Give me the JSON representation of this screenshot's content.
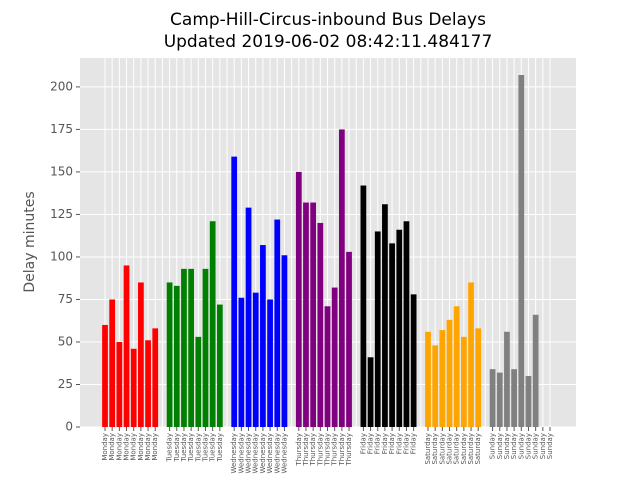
{
  "chart_data": {
    "type": "bar",
    "title": "Camp-Hill-Circus-inbound Bus Delays",
    "subtitle": "Updated 2019-06-02 08:42:11.484177",
    "ylabel": "Delay minutes",
    "categories": [
      "Monday",
      "Monday",
      "Monday",
      "Monday",
      "Monday",
      "Monday",
      "Monday",
      "Monday",
      null,
      "Tuesday",
      "Tuesday",
      "Tuesday",
      "Tuesday",
      "Tuesday",
      "Tuesday",
      "Tuesday",
      "Tuesday",
      null,
      "Wednesday",
      "Wednesday",
      "Wednesday",
      "Wednesday",
      "Wednesday",
      "Wednesday",
      "Wednesday",
      "Wednesday",
      null,
      "Thursday",
      "Thursday",
      "Thursday",
      "Thursday",
      "Thursday",
      "Thursday",
      "Thursday",
      "Thursday",
      null,
      "Friday",
      "Friday",
      "Friday",
      "Friday",
      "Friday",
      "Friday",
      "Friday",
      "Friday",
      null,
      "Saturday",
      "Saturday",
      "Saturday",
      "Saturday",
      "Saturday",
      "Saturday",
      "Saturday",
      "Saturday",
      null,
      "Sunday",
      "Sunday",
      "Sunday",
      "Sunday",
      "Sunday",
      "Sunday",
      "Sunday",
      "Sunday",
      "Sunday"
    ],
    "values": [
      60,
      75,
      50,
      95,
      46,
      85,
      51,
      58,
      null,
      85,
      83,
      93,
      93,
      53,
      93,
      121,
      72,
      null,
      159,
      76,
      129,
      79,
      107,
      75,
      122,
      101,
      null,
      150,
      132,
      132,
      120,
      71,
      82,
      175,
      103,
      null,
      142,
      41,
      115,
      131,
      108,
      116,
      121,
      78,
      null,
      56,
      48,
      57,
      63,
      71,
      53,
      85,
      58,
      null,
      34,
      32,
      56,
      34,
      207,
      30,
      66,
      0,
      0
    ],
    "colors": [
      "red",
      "red",
      "red",
      "red",
      "red",
      "red",
      "red",
      "red",
      null,
      "green",
      "green",
      "green",
      "green",
      "green",
      "green",
      "green",
      "green",
      null,
      "blue",
      "blue",
      "blue",
      "blue",
      "blue",
      "blue",
      "blue",
      "blue",
      null,
      "purple",
      "purple",
      "purple",
      "purple",
      "purple",
      "purple",
      "purple",
      "purple",
      null,
      "black",
      "black",
      "black",
      "black",
      "black",
      "black",
      "black",
      "black",
      null,
      "orange",
      "orange",
      "orange",
      "orange",
      "orange",
      "orange",
      "orange",
      "orange",
      null,
      "gray",
      "gray",
      "gray",
      "gray",
      "gray",
      "gray",
      "gray",
      "gray",
      "gray"
    ],
    "ylim": [
      0,
      217
    ],
    "yticks": [
      0,
      25,
      50,
      75,
      100,
      125,
      150,
      175,
      200
    ],
    "grid": true
  }
}
